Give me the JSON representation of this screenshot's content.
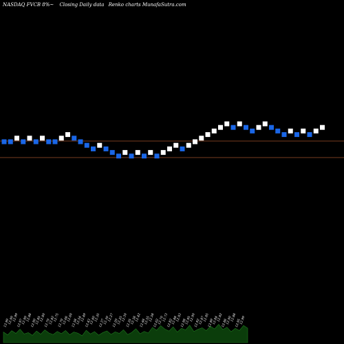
{
  "header": {
    "left": "NASDAQ FVCB 8%~",
    "mid": "Closing Daily data",
    "right": "Renko  charts MunafaSutra.com"
  },
  "colors": {
    "background": "#000000",
    "brick_up": "#ffffff",
    "brick_down": "#1a66e6",
    "ref_line": "#a0522d",
    "volume_fill": "#0b3d0b",
    "volume_stroke": "#1f7a1f",
    "label_text": "#ffffff"
  },
  "chart_data": {
    "type": "renko",
    "reference_lines": [
      12.85,
      12.25
    ],
    "bricks": [
      {
        "dir": "down",
        "level": 5
      },
      {
        "dir": "down",
        "level": 5
      },
      {
        "dir": "up",
        "level": 6
      },
      {
        "dir": "down",
        "level": 5
      },
      {
        "dir": "up",
        "level": 6
      },
      {
        "dir": "down",
        "level": 5
      },
      {
        "dir": "up",
        "level": 6
      },
      {
        "dir": "down",
        "level": 5
      },
      {
        "dir": "down",
        "level": 5
      },
      {
        "dir": "up",
        "level": 6
      },
      {
        "dir": "up",
        "level": 7
      },
      {
        "dir": "down",
        "level": 6
      },
      {
        "dir": "down",
        "level": 5
      },
      {
        "dir": "down",
        "level": 4
      },
      {
        "dir": "down",
        "level": 3
      },
      {
        "dir": "up",
        "level": 4
      },
      {
        "dir": "down",
        "level": 3
      },
      {
        "dir": "down",
        "level": 2
      },
      {
        "dir": "down",
        "level": 1
      },
      {
        "dir": "up",
        "level": 2
      },
      {
        "dir": "down",
        "level": 1
      },
      {
        "dir": "up",
        "level": 2
      },
      {
        "dir": "down",
        "level": 1
      },
      {
        "dir": "up",
        "level": 2
      },
      {
        "dir": "down",
        "level": 1
      },
      {
        "dir": "up",
        "level": 2
      },
      {
        "dir": "up",
        "level": 3
      },
      {
        "dir": "up",
        "level": 4
      },
      {
        "dir": "down",
        "level": 3
      },
      {
        "dir": "up",
        "level": 4
      },
      {
        "dir": "up",
        "level": 5
      },
      {
        "dir": "up",
        "level": 6
      },
      {
        "dir": "up",
        "level": 7
      },
      {
        "dir": "up",
        "level": 8
      },
      {
        "dir": "up",
        "level": 9
      },
      {
        "dir": "up",
        "level": 10
      },
      {
        "dir": "down",
        "level": 9
      },
      {
        "dir": "up",
        "level": 10
      },
      {
        "dir": "down",
        "level": 9
      },
      {
        "dir": "down",
        "level": 8
      },
      {
        "dir": "up",
        "level": 9
      },
      {
        "dir": "up",
        "level": 10
      },
      {
        "dir": "down",
        "level": 9
      },
      {
        "dir": "down",
        "level": 8
      },
      {
        "dir": "down",
        "level": 7
      },
      {
        "dir": "up",
        "level": 8
      },
      {
        "dir": "down",
        "level": 7
      },
      {
        "dir": "up",
        "level": 8
      },
      {
        "dir": "down",
        "level": 7
      },
      {
        "dir": "up",
        "level": 8
      },
      {
        "dir": "up",
        "level": 9
      }
    ],
    "price_labels": [
      "12.99",
      "12.99",
      "12.99",
      "12.97",
      "12.99",
      "12.88",
      "12.90",
      "12.85",
      "12.80",
      "12.79",
      "12.82",
      "12.75",
      "12.70",
      "12.66",
      "12.60",
      "12.58",
      "12.54",
      "12.49",
      "12.43",
      "12.40",
      "12.35",
      "12.37",
      "12.30",
      "12.27",
      "12.29",
      "12.25",
      "12.30",
      "12.35",
      "12.38",
      "12.42",
      "12.48",
      "12.55",
      "12.58",
      "12.62",
      "12.70",
      "12.73",
      "12.82",
      "12.88",
      "12.93",
      "12.98",
      "12.95",
      "12.90",
      "12.92",
      "12.87",
      "12.85",
      "12.89",
      "12.84",
      "12.82",
      "12.86",
      "12.90",
      "12.88",
      "12.95",
      "12.99"
    ],
    "volume": [
      0.55,
      0.4,
      0.62,
      0.48,
      0.7,
      0.45,
      0.52,
      0.38,
      0.6,
      0.44,
      0.66,
      0.5,
      0.42,
      0.58,
      0.47,
      0.63,
      0.41,
      0.55,
      0.49,
      0.36,
      0.64,
      0.45,
      0.57,
      0.39,
      0.52,
      0.61,
      0.43,
      0.56,
      0.48,
      0.67,
      0.42,
      0.53,
      0.72,
      0.46,
      0.58,
      0.5,
      0.79,
      0.64,
      0.88,
      0.7,
      0.6,
      0.82,
      0.55,
      0.74,
      0.66,
      0.9,
      0.58,
      0.69,
      0.77,
      0.62,
      0.85,
      0.71,
      0.95,
      0.68,
      0.8,
      0.57,
      0.74,
      0.63,
      0.89,
      0.75
    ]
  }
}
